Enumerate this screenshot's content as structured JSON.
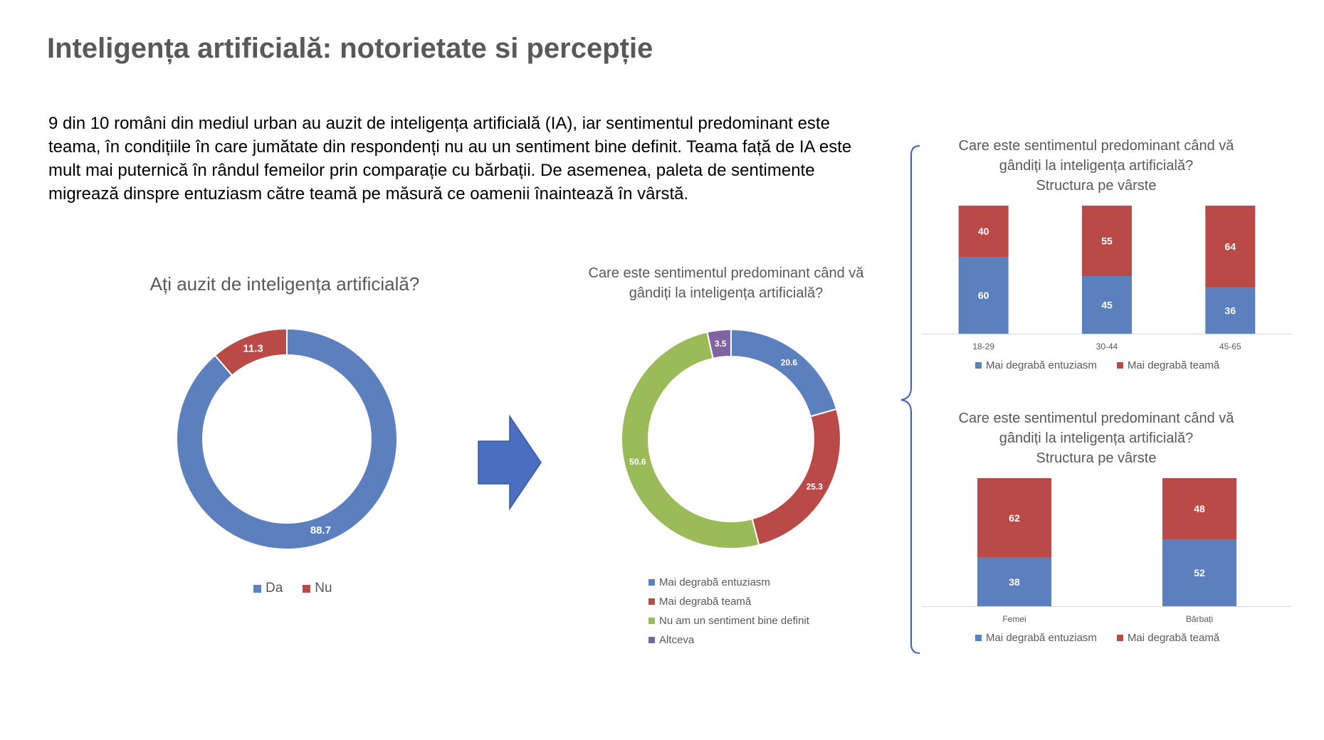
{
  "page": {
    "title": "Inteligența artificială: notorietate si percepție",
    "intro": "9 din 10 români din mediul urban au auzit de inteligența artificială (IA), iar sentimentul predominant este teama, în condițiile în care jumătate din respondenți nu au un sentiment bine definit. Teama față de IA este mult mai puternică în rândul femeilor prin comparație cu bărbații. De asemenea, paleta de sentimente migrează dinspre entuziasm către teamă pe măsură ce oamenii înaintează în vârstă."
  },
  "colors": {
    "blue": "#5b80bd",
    "red": "#b94a48",
    "green": "#9bbb59",
    "purple": "#8064a2",
    "arrow": "#4a6fc0"
  },
  "icons": {
    "arrow": "right-arrow-icon",
    "brace": "curly-brace-icon"
  },
  "chart_data": [
    {
      "type": "pie",
      "donut": true,
      "title": "Ați auzit de inteligența artificială?",
      "categories": [
        "Da",
        "Nu"
      ],
      "values": [
        88.7,
        11.3
      ],
      "colors": [
        "#5b80bd",
        "#b94a48"
      ],
      "legend": "bottom"
    },
    {
      "type": "pie",
      "donut": true,
      "title_lines": [
        "Care este sentimentul predominant când vă",
        "gândiți la inteligența artificială?"
      ],
      "categories": [
        "Mai degrabă entuziasm",
        "Mai degrabă teamă",
        "Nu am un sentiment bine definit",
        "Altceva"
      ],
      "values": [
        20.6,
        25.3,
        50.6,
        3.5
      ],
      "colors": [
        "#5b80bd",
        "#b94a48",
        "#9bbb59",
        "#8064a2"
      ],
      "legend": "bottom"
    },
    {
      "type": "bar",
      "stacked": true,
      "title_lines": [
        "Care este sentimentul predominant când vă",
        "gândiți la inteligența artificială?",
        "Structura pe vârste"
      ],
      "categories": [
        "18-29",
        "30-44",
        "45-65"
      ],
      "series": [
        {
          "name": "Mai degrabă entuziasm",
          "values": [
            60,
            45,
            36
          ],
          "color": "#5b80bd"
        },
        {
          "name": "Mai degrabă teamă",
          "values": [
            40,
            55,
            64
          ],
          "color": "#b94a48"
        }
      ],
      "ylim": [
        0,
        100
      ],
      "legend": "bottom"
    },
    {
      "type": "bar",
      "stacked": true,
      "title_lines": [
        "Care este sentimentul predominant când vă",
        "gândiți la inteligența artificială?",
        "Structura pe vârste"
      ],
      "categories": [
        "Femei",
        "Bărbați"
      ],
      "series": [
        {
          "name": "Mai degrabă entuziasm",
          "values": [
            38,
            52
          ],
          "color": "#5b80bd"
        },
        {
          "name": "Mai degrabă teamă",
          "values": [
            62,
            48
          ],
          "color": "#b94a48"
        }
      ],
      "ylim": [
        0,
        100
      ],
      "legend": "bottom"
    }
  ]
}
